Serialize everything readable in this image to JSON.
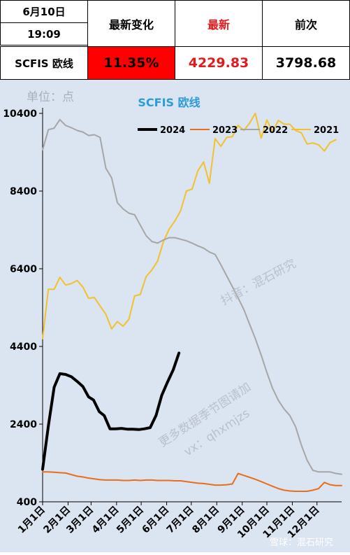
{
  "header": {
    "date": "6月10日",
    "time": "19:09",
    "col_change": "最新变化",
    "col_latest": "最新",
    "col_prev": "前次",
    "row_label": "SCFIS 欧线",
    "change_value": "11.35%",
    "latest_value": "4229.83",
    "prev_value": "3798.68"
  },
  "watermarks": {
    "unit": "单位：点",
    "douyin": "抖音：混石研究",
    "more": "更多数据季节图请加",
    "vx": "vx：qhxmjzs",
    "footer": "雪球：混石研究"
  },
  "chart_data": {
    "type": "line",
    "title": "SCFIS 欧线",
    "xlabel": "",
    "ylabel": "单位：点",
    "ylim": [
      400,
      10400
    ],
    "yticks": [
      400,
      2400,
      4400,
      6400,
      8400,
      10400
    ],
    "xlim": [
      1,
      365
    ],
    "xticks": [
      {
        "label": "1月1日",
        "day": 1
      },
      {
        "label": "2月1日",
        "day": 32
      },
      {
        "label": "3月1日",
        "day": 60
      },
      {
        "label": "4月1日",
        "day": 91
      },
      {
        "label": "5月1日",
        "day": 121
      },
      {
        "label": "6月1日",
        "day": 152
      },
      {
        "label": "7月1日",
        "day": 182
      },
      {
        "label": "8月1日",
        "day": 213
      },
      {
        "label": "9月1日",
        "day": 244
      },
      {
        "label": "10月1日",
        "day": 274
      },
      {
        "label": "11月1日",
        "day": 305
      },
      {
        "label": "12月1日",
        "day": 335
      }
    ],
    "grid": false,
    "legend": "top",
    "series": [
      {
        "name": "2024",
        "color": "#000000",
        "width": 4,
        "points": [
          [
            1,
            1240
          ],
          [
            8,
            2350
          ],
          [
            15,
            3350
          ],
          [
            22,
            3700
          ],
          [
            29,
            3680
          ],
          [
            36,
            3620
          ],
          [
            43,
            3500
          ],
          [
            50,
            3370
          ],
          [
            57,
            3100
          ],
          [
            63,
            3020
          ],
          [
            70,
            2720
          ],
          [
            76,
            2620
          ],
          [
            83,
            2280
          ],
          [
            90,
            2280
          ],
          [
            97,
            2290
          ],
          [
            104,
            2270
          ],
          [
            111,
            2270
          ],
          [
            118,
            2260
          ],
          [
            125,
            2280
          ],
          [
            132,
            2310
          ],
          [
            139,
            2620
          ],
          [
            146,
            3140
          ],
          [
            153,
            3480
          ],
          [
            160,
            3800
          ],
          [
            167,
            4230
          ]
        ]
      },
      {
        "name": "2023",
        "color": "#e86d1f",
        "width": 2,
        "points": [
          [
            1,
            1170
          ],
          [
            8,
            1170
          ],
          [
            15,
            1160
          ],
          [
            22,
            1150
          ],
          [
            29,
            1140
          ],
          [
            36,
            1100
          ],
          [
            43,
            1060
          ],
          [
            50,
            1040
          ],
          [
            57,
            1010
          ],
          [
            64,
            990
          ],
          [
            71,
            970
          ],
          [
            78,
            960
          ],
          [
            85,
            960
          ],
          [
            92,
            960
          ],
          [
            99,
            950
          ],
          [
            106,
            950
          ],
          [
            113,
            960
          ],
          [
            120,
            950
          ],
          [
            127,
            960
          ],
          [
            134,
            960
          ],
          [
            141,
            950
          ],
          [
            148,
            950
          ],
          [
            155,
            950
          ],
          [
            162,
            940
          ],
          [
            169,
            940
          ],
          [
            176,
            920
          ],
          [
            183,
            900
          ],
          [
            190,
            880
          ],
          [
            197,
            870
          ],
          [
            204,
            850
          ],
          [
            211,
            830
          ],
          [
            218,
            830
          ],
          [
            225,
            840
          ],
          [
            232,
            860
          ],
          [
            239,
            1130
          ],
          [
            246,
            1080
          ],
          [
            253,
            1030
          ],
          [
            260,
            980
          ],
          [
            267,
            920
          ],
          [
            274,
            860
          ],
          [
            281,
            800
          ],
          [
            288,
            740
          ],
          [
            295,
            700
          ],
          [
            302,
            680
          ],
          [
            309,
            670
          ],
          [
            316,
            670
          ],
          [
            323,
            670
          ],
          [
            330,
            700
          ],
          [
            337,
            740
          ],
          [
            344,
            900
          ],
          [
            351,
            840
          ],
          [
            358,
            820
          ],
          [
            365,
            820
          ]
        ]
      },
      {
        "name": "2022",
        "color": "#a6a6a6",
        "width": 2,
        "points": [
          [
            1,
            9460
          ],
          [
            8,
            9980
          ],
          [
            15,
            10020
          ],
          [
            22,
            10240
          ],
          [
            29,
            10090
          ],
          [
            36,
            10030
          ],
          [
            43,
            9960
          ],
          [
            50,
            9920
          ],
          [
            57,
            9830
          ],
          [
            64,
            9850
          ],
          [
            71,
            9780
          ],
          [
            78,
            8990
          ],
          [
            85,
            8740
          ],
          [
            92,
            8100
          ],
          [
            99,
            7940
          ],
          [
            106,
            7830
          ],
          [
            113,
            7790
          ],
          [
            120,
            7520
          ],
          [
            127,
            7250
          ],
          [
            134,
            7100
          ],
          [
            141,
            7060
          ],
          [
            148,
            7140
          ],
          [
            155,
            7200
          ],
          [
            162,
            7200
          ],
          [
            169,
            7160
          ],
          [
            176,
            7120
          ],
          [
            183,
            7060
          ],
          [
            190,
            6990
          ],
          [
            197,
            6930
          ],
          [
            204,
            6830
          ],
          [
            211,
            6770
          ],
          [
            218,
            6500
          ],
          [
            225,
            6220
          ],
          [
            232,
            5940
          ],
          [
            239,
            5650
          ],
          [
            246,
            5350
          ],
          [
            253,
            4970
          ],
          [
            260,
            4600
          ],
          [
            267,
            4180
          ],
          [
            274,
            3730
          ],
          [
            281,
            3320
          ],
          [
            288,
            3010
          ],
          [
            295,
            2790
          ],
          [
            302,
            2620
          ],
          [
            309,
            2330
          ],
          [
            316,
            1860
          ],
          [
            323,
            1470
          ],
          [
            330,
            1210
          ],
          [
            337,
            1170
          ],
          [
            344,
            1170
          ],
          [
            351,
            1170
          ],
          [
            358,
            1130
          ],
          [
            365,
            1110
          ]
        ]
      },
      {
        "name": "2021",
        "color": "#f2c12e",
        "width": 2,
        "points": [
          [
            1,
            4600
          ],
          [
            8,
            5870
          ],
          [
            15,
            5870
          ],
          [
            22,
            6180
          ],
          [
            29,
            5980
          ],
          [
            36,
            6020
          ],
          [
            43,
            6100
          ],
          [
            50,
            5930
          ],
          [
            57,
            5640
          ],
          [
            64,
            5660
          ],
          [
            71,
            5440
          ],
          [
            78,
            5230
          ],
          [
            85,
            4850
          ],
          [
            92,
            5040
          ],
          [
            99,
            4920
          ],
          [
            106,
            5100
          ],
          [
            113,
            5700
          ],
          [
            120,
            5740
          ],
          [
            127,
            6200
          ],
          [
            134,
            6370
          ],
          [
            141,
            6600
          ],
          [
            148,
            7090
          ],
          [
            155,
            7420
          ],
          [
            162,
            7630
          ],
          [
            169,
            7890
          ],
          [
            176,
            8400
          ],
          [
            183,
            8450
          ],
          [
            190,
            8920
          ],
          [
            197,
            9150
          ],
          [
            204,
            8600
          ],
          [
            211,
            9750
          ],
          [
            218,
            9550
          ],
          [
            225,
            9780
          ],
          [
            232,
            9800
          ],
          [
            239,
            10090
          ],
          [
            246,
            9960
          ],
          [
            253,
            10150
          ],
          [
            260,
            10400
          ],
          [
            267,
            9760
          ],
          [
            274,
            10230
          ],
          [
            281,
            9930
          ],
          [
            288,
            10220
          ],
          [
            295,
            10120
          ],
          [
            302,
            10120
          ],
          [
            309,
            9960
          ],
          [
            316,
            9900
          ],
          [
            323,
            9610
          ],
          [
            330,
            9640
          ],
          [
            337,
            9590
          ],
          [
            344,
            9430
          ],
          [
            351,
            9650
          ],
          [
            358,
            9720
          ]
        ]
      }
    ]
  }
}
